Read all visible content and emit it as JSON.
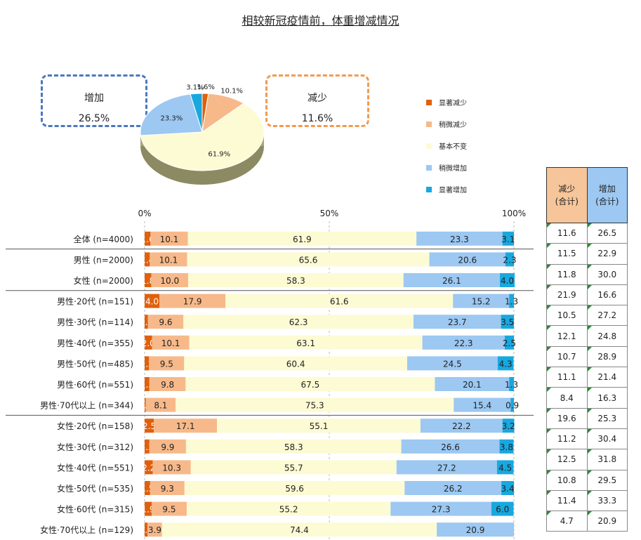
{
  "title": "相较新冠疫情前，体重增减情况",
  "callouts": {
    "increase": {
      "label": "增加",
      "value": "26.5%"
    },
    "decrease": {
      "label": "减少",
      "value": "11.6%"
    }
  },
  "legend": [
    "显著减少",
    "稍微减少",
    "基本不变",
    "稍微增加",
    "显著增加"
  ],
  "colors": {
    "显著减少": "#e0600c",
    "稍微减少": "#f7b98a",
    "基本不变": "#fdfbd4",
    "稍微增加": "#9cc8f2",
    "显著增加": "#18a8e0"
  },
  "totals_header": {
    "decrease": [
      "减少",
      "(合计)"
    ],
    "increase": [
      "增加",
      "(合计)"
    ]
  },
  "chart_data": [
    {
      "type": "pie",
      "slices": [
        {
          "name": "显著减少",
          "value": 1.6,
          "label": "1.6%"
        },
        {
          "name": "稍微减少",
          "value": 10.1,
          "label": "10.1%"
        },
        {
          "name": "基本不变",
          "value": 61.9,
          "label": "61.9%"
        },
        {
          "name": "稍微增加",
          "value": 23.3,
          "label": "23.3%"
        },
        {
          "name": "显著增加",
          "value": 3.1,
          "label": "3.1%"
        }
      ]
    },
    {
      "type": "bar",
      "orientation": "horizontal-stacked-100",
      "axis_ticks": [
        "0%",
        "50%",
        "100%"
      ],
      "xlim": [
        0,
        100
      ],
      "series_names": [
        "显著减少",
        "稍微减少",
        "基本不变",
        "稍微增加",
        "显著增加"
      ],
      "categories": [
        "全体 (n=4000)",
        "男性 (n=2000)",
        "女性 (n=2000)",
        "男性·20代 (n=151)",
        "男性·30代 (n=114)",
        "男性·40代 (n=355)",
        "男性·50代 (n=485)",
        "男性·60代 (n=551)",
        "男性·70代以上 (n=344)",
        "女性·20代 (n=158)",
        "女性·30代 (n=312)",
        "女性·40代 (n=551)",
        "女性·50代 (n=535)",
        "女性·60代 (n=315)",
        "女性·70代以上 (n=129)"
      ],
      "values": [
        [
          1.6,
          10.1,
          61.9,
          23.3,
          3.1
        ],
        [
          1.4,
          10.1,
          65.6,
          20.6,
          2.3
        ],
        [
          1.8,
          10.0,
          58.3,
          26.1,
          4.0
        ],
        [
          4.0,
          17.9,
          61.6,
          15.2,
          1.3
        ],
        [
          0.9,
          9.6,
          62.3,
          23.7,
          3.5
        ],
        [
          2.0,
          10.1,
          63.1,
          22.3,
          2.5
        ],
        [
          1.2,
          9.5,
          60.4,
          24.5,
          4.3
        ],
        [
          1.3,
          9.8,
          67.5,
          20.1,
          1.3
        ],
        [
          0.3,
          8.1,
          75.3,
          15.4,
          0.9
        ],
        [
          2.5,
          17.1,
          55.1,
          22.2,
          3.2
        ],
        [
          1.3,
          9.9,
          58.3,
          26.6,
          3.8
        ],
        [
          2.2,
          10.3,
          55.7,
          27.2,
          4.5
        ],
        [
          1.5,
          9.3,
          59.6,
          26.2,
          3.4
        ],
        [
          1.9,
          9.5,
          55.2,
          27.3,
          6.0
        ],
        [
          0.8,
          3.9,
          74.4,
          20.9,
          0.0
        ]
      ],
      "value_labels": [
        [
          "1.6",
          "10.1",
          "61.9",
          "23.3",
          "3.1"
        ],
        [
          "1.4",
          "10.1",
          "65.6",
          "20.6",
          "2.3"
        ],
        [
          "1.8",
          "10.0",
          "58.3",
          "26.1",
          "4.0"
        ],
        [
          "4.0",
          "17.9",
          "61.6",
          "15.2",
          "1.3"
        ],
        [
          "0.9",
          "9.6",
          "62.3",
          "23.7",
          "3.5"
        ],
        [
          "2.0",
          "10.1",
          "63.1",
          "22.3",
          "2.5"
        ],
        [
          "1.2",
          "9.5",
          "60.4",
          "24.5",
          "4.3"
        ],
        [
          "1.3",
          "9.8",
          "67.5",
          "20.1",
          "1.3"
        ],
        [
          "0.3",
          "8.1",
          "75.3",
          "15.4",
          "0.9"
        ],
        [
          "2.5",
          "17.1",
          "55.1",
          "22.2",
          "3.2"
        ],
        [
          "1.3",
          "9.9",
          "58.3",
          "26.6",
          "3.8"
        ],
        [
          "2.2",
          "10.3",
          "55.7",
          "27.2",
          "4.5"
        ],
        [
          "1.5",
          "9.3",
          "59.6",
          "26.2",
          "3.4"
        ],
        [
          "1.9",
          "9.5",
          "55.2",
          "27.3",
          "6.0"
        ],
        [
          "0.8",
          "3.9",
          "74.4",
          "20.9",
          ""
        ]
      ],
      "group_separators_after": [
        0,
        2,
        8
      ]
    },
    {
      "type": "table",
      "columns": [
        "减少 (合计)",
        "增加 (合计)"
      ],
      "rows": [
        [
          "11.6",
          "26.5"
        ],
        [
          "11.5",
          "22.9"
        ],
        [
          "11.8",
          "30.0"
        ],
        [
          "21.9",
          "16.6"
        ],
        [
          "10.5",
          "27.2"
        ],
        [
          "12.1",
          "24.8"
        ],
        [
          "10.7",
          "28.9"
        ],
        [
          "11.1",
          "21.4"
        ],
        [
          "8.4",
          "16.3"
        ],
        [
          "19.6",
          "25.3"
        ],
        [
          "11.2",
          "30.4"
        ],
        [
          "12.5",
          "31.8"
        ],
        [
          "10.8",
          "29.5"
        ],
        [
          "11.4",
          "33.3"
        ],
        [
          "4.7",
          "20.9"
        ]
      ]
    }
  ]
}
